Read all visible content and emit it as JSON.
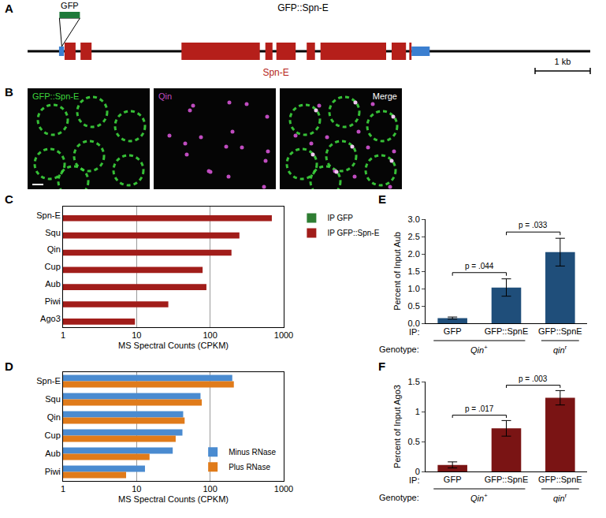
{
  "panel_labels": [
    "A",
    "B",
    "C",
    "D",
    "E",
    "F"
  ],
  "diagram": {
    "title": "GFP::Spn-E",
    "tag": "GFP",
    "gene": "Spn-E",
    "tag_color": "#1f7a3a",
    "exon_color": "#b51f1a",
    "utr_color": "#3b7fd0",
    "length_kb": 10.2,
    "tag_at_kb": 0.62,
    "segments": [
      {
        "kind": "utr",
        "start": 0.57,
        "end": 0.66
      },
      {
        "kind": "exon",
        "start": 0.67,
        "end": 0.87
      },
      {
        "kind": "exon",
        "start": 0.96,
        "end": 1.16
      },
      {
        "kind": "exon",
        "start": 2.79,
        "end": 4.21
      },
      {
        "kind": "exon",
        "start": 4.31,
        "end": 4.44
      },
      {
        "kind": "exon",
        "start": 4.51,
        "end": 4.86
      },
      {
        "kind": "exon",
        "start": 5.06,
        "end": 5.21
      },
      {
        "kind": "exon",
        "start": 5.31,
        "end": 6.5
      },
      {
        "kind": "exon",
        "start": 6.6,
        "end": 6.86
      },
      {
        "kind": "exon",
        "start": 6.92,
        "end": 6.96
      },
      {
        "kind": "utr",
        "start": 6.96,
        "end": 7.29
      }
    ],
    "scale_bar": {
      "label": "1 kb",
      "length_kb": 1
    }
  },
  "images": {
    "panels": [
      {
        "label": "GFP::Spn-E",
        "color": "#3cd43c"
      },
      {
        "label": "Qin",
        "color": "#c04cc0"
      },
      {
        "label": "Merge",
        "color": "#ffffff"
      }
    ]
  },
  "chart_data": [
    {
      "type": "bar",
      "orientation": "horizontal",
      "log": "x",
      "categories": [
        "Spn-E",
        "Squ",
        "Qin",
        "Cup",
        "Aub",
        "Piwi",
        "Ago3"
      ],
      "series": [
        {
          "name": "IP GFP",
          "color": "#2e7d32",
          "values": [
            null,
            null,
            null,
            null,
            null,
            null,
            null
          ]
        },
        {
          "name": "IP GFP::Spn-E",
          "color": "#a11d1a",
          "values": [
            690,
            250,
            195,
            79,
            89,
            27,
            9.5
          ]
        }
      ],
      "xlim": [
        1,
        1000
      ],
      "xticks": [
        1,
        10,
        100,
        1000
      ],
      "x_label": "MS Spectral Counts (CPKM)",
      "grid": true,
      "legend": "right"
    },
    {
      "type": "bar",
      "orientation": "horizontal",
      "log": "x",
      "categories": [
        "Spn-E",
        "Squ",
        "Qin",
        "Cup",
        "Aub",
        "Piwi"
      ],
      "series": [
        {
          "name": "Minus RNase",
          "color": "#4a8bd0",
          "values": [
            200,
            74,
            43,
            42,
            31,
            13
          ]
        },
        {
          "name": "Plus RNase",
          "color": "#e07b1a",
          "values": [
            210,
            77,
            45,
            34,
            15,
            7.2
          ]
        }
      ],
      "xlim": [
        1,
        1000
      ],
      "xticks": [
        1,
        10,
        100,
        1000
      ],
      "x_label": "MS Spectral Counts (CPKM)",
      "grid": true,
      "legend": "lower right"
    },
    {
      "type": "bar",
      "categories": [
        "GFP",
        "GFP::SpnE",
        "GFP::SpnE"
      ],
      "values": [
        0.15,
        1.03,
        2.05
      ],
      "errors": [
        0.03,
        0.25,
        0.4
      ],
      "color": "#1f4e7a",
      "ylim": [
        0,
        3
      ],
      "yticks": [
        {
          "value": 0,
          "label": "0.0"
        },
        {
          "value": 0.5,
          "label": "0.5"
        },
        {
          "value": 1,
          "label": "1.0"
        },
        {
          "value": 1.5,
          "label": "1.5"
        },
        {
          "value": 2,
          "label": "2.0"
        },
        {
          "value": 2.5,
          "label": "2.5"
        },
        {
          "value": 3,
          "label": "3.0"
        }
      ],
      "y_label": "Percent of Input Aub",
      "grid": false,
      "row_labels": [
        "IP:",
        "Genotype:"
      ],
      "genotypes": [
        {
          "text": "Qin",
          "sup": "+",
          "bars": [
            0,
            1
          ]
        },
        {
          "text": "qin",
          "sup": "r",
          "bars": [
            2
          ]
        }
      ],
      "annotations": [
        {
          "text": "p = .044",
          "bars": [
            0,
            1
          ]
        },
        {
          "text": "p = .033",
          "bars": [
            1,
            2
          ]
        }
      ]
    },
    {
      "type": "bar",
      "categories": [
        "GFP",
        "GFP::SpnE",
        "GFP::SpnE"
      ],
      "values": [
        0.11,
        0.72,
        1.23
      ],
      "errors": [
        0.05,
        0.13,
        0.12
      ],
      "color": "#7a1414",
      "ylim": [
        0,
        1.5
      ],
      "yticks": [
        0,
        0.5,
        1,
        1.5
      ],
      "y_label": "Percent of Input Ago3",
      "grid": false,
      "row_labels": [
        "IP:",
        "Genotype:"
      ],
      "genotypes": [
        {
          "text": "Qin",
          "sup": "+",
          "bars": [
            0,
            1
          ]
        },
        {
          "text": "qin",
          "sup": "r",
          "bars": [
            2
          ]
        }
      ],
      "annotations": [
        {
          "text": "p = .017",
          "bars": [
            0,
            1
          ]
        },
        {
          "text": "p = .003",
          "bars": [
            1,
            2
          ]
        }
      ]
    }
  ]
}
